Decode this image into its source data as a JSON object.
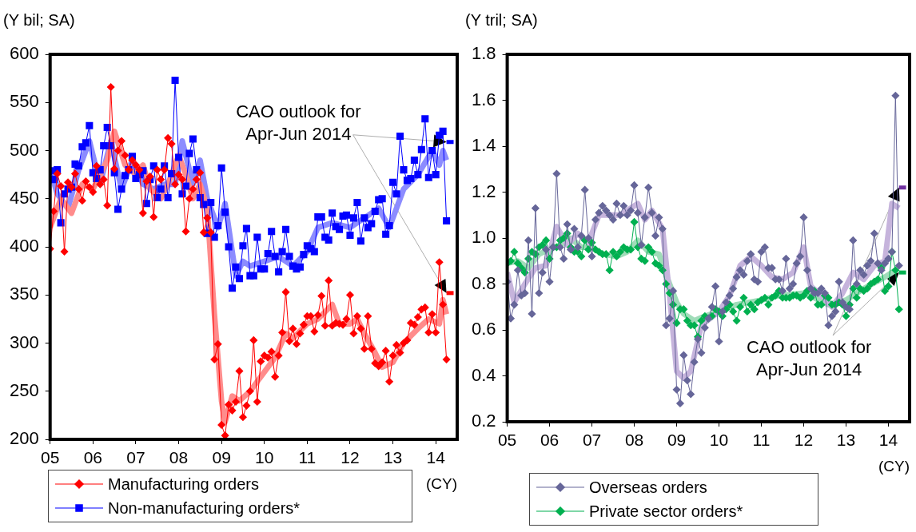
{
  "chart_data": [
    {
      "type": "line",
      "ylabel": "(Y bil; SA)",
      "xlabel": "(CY)",
      "annotations": [
        {
          "text": "CAO outlook for Apr-Jun 2014",
          "x": "2014-04",
          "y": 509
        }
      ],
      "legend": "bottom",
      "x": [
        "2005-01",
        "2005-02",
        "2005-03",
        "2005-04",
        "2005-05",
        "2005-06",
        "2005-07",
        "2005-08",
        "2005-09",
        "2005-10",
        "2005-11",
        "2005-12",
        "2006-01",
        "2006-02",
        "2006-03",
        "2006-04",
        "2006-05",
        "2006-06",
        "2006-07",
        "2006-08",
        "2006-09",
        "2006-10",
        "2006-11",
        "2006-12",
        "2007-01",
        "2007-02",
        "2007-03",
        "2007-04",
        "2007-05",
        "2007-06",
        "2007-07",
        "2007-08",
        "2007-09",
        "2007-10",
        "2007-11",
        "2007-12",
        "2008-01",
        "2008-02",
        "2008-03",
        "2008-04",
        "2008-05",
        "2008-06",
        "2008-07",
        "2008-08",
        "2008-09",
        "2008-10",
        "2008-11",
        "2008-12",
        "2009-01",
        "2009-02",
        "2009-03",
        "2009-04",
        "2009-05",
        "2009-06",
        "2009-07",
        "2009-08",
        "2009-09",
        "2009-10",
        "2009-11",
        "2009-12",
        "2010-01",
        "2010-02",
        "2010-03",
        "2010-04",
        "2010-05",
        "2010-06",
        "2010-07",
        "2010-08",
        "2010-09",
        "2010-10",
        "2010-11",
        "2010-12",
        "2011-01",
        "2011-02",
        "2011-03",
        "2011-04",
        "2011-05",
        "2011-06",
        "2011-07",
        "2011-08",
        "2011-09",
        "2011-10",
        "2011-11",
        "2011-12",
        "2012-01",
        "2012-02",
        "2012-03",
        "2012-04",
        "2012-05",
        "2012-06",
        "2012-07",
        "2012-08",
        "2012-09",
        "2012-10",
        "2012-11",
        "2012-12",
        "2013-01",
        "2013-02",
        "2013-03",
        "2013-04",
        "2013-05",
        "2013-06",
        "2013-07",
        "2013-08",
        "2013-09",
        "2013-10",
        "2013-11",
        "2013-12",
        "2014-01",
        "2014-02",
        "2014-03",
        "2014-04"
      ],
      "xlim": [
        "2005",
        "2014-07"
      ],
      "xticks": [
        {
          "value": "2005",
          "label": "05"
        },
        {
          "value": "2006",
          "label": "06"
        },
        {
          "value": "2007",
          "label": "07"
        },
        {
          "value": "2008",
          "label": "08"
        },
        {
          "value": "2009",
          "label": "09"
        },
        {
          "value": "2010",
          "label": "10"
        },
        {
          "value": "2011",
          "label": "11"
        },
        {
          "value": "2012",
          "label": "12"
        },
        {
          "value": "2013",
          "label": "13"
        },
        {
          "value": "2014",
          "label": "14"
        }
      ],
      "ylim": [
        200,
        600
      ],
      "yticks": [
        200,
        250,
        300,
        350,
        400,
        450,
        500,
        550,
        600
      ],
      "series": [
        {
          "color": "#ff8c8c",
          "marker": "none",
          "x": [
            "2005-01",
            "2005-04",
            "2005-07",
            "2005-10",
            "2006-01",
            "2006-03",
            "2006-05",
            "2006-07",
            "2006-10",
            "2007-01",
            "2007-03",
            "2007-05",
            "2007-08",
            "2007-10",
            "2008-01",
            "2008-03",
            "2008-05",
            "2008-07",
            "2008-09",
            "2008-11",
            "2009-01",
            "2009-02",
            "2009-04",
            "2009-06",
            "2009-09",
            "2010-01",
            "2010-04",
            "2010-07",
            "2010-09",
            "2011-01",
            "2011-04",
            "2011-08",
            "2011-10",
            "2012-01",
            "2012-03",
            "2012-05",
            "2012-08",
            "2012-10",
            "2013-01",
            "2013-04",
            "2013-08",
            "2013-11",
            "2014-02",
            "2014-03",
            "2014-04"
          ],
          "values": [
            420,
            450,
            435,
            465,
            460,
            475,
            490,
            520,
            485,
            475,
            485,
            460,
            450,
            465,
            495,
            475,
            450,
            465,
            440,
            330,
            240,
            218,
            245,
            240,
            250,
            270,
            285,
            310,
            305,
            320,
            325,
            340,
            320,
            320,
            325,
            310,
            290,
            275,
            280,
            300,
            315,
            325,
            320,
            345,
            330
          ]
        },
        {
          "color": "#8c8cff",
          "marker": "none",
          "x": [
            "2005-01",
            "2005-03",
            "2005-06",
            "2005-09",
            "2005-12",
            "2006-03",
            "2006-06",
            "2006-09",
            "2006-12",
            "2007-03",
            "2007-06",
            "2007-09",
            "2007-12",
            "2008-02",
            "2008-05",
            "2008-07",
            "2008-09",
            "2008-12",
            "2009-02",
            "2009-05",
            "2009-07",
            "2009-09",
            "2010-01",
            "2010-05",
            "2010-09",
            "2011-01",
            "2011-04",
            "2011-08",
            "2012-01",
            "2012-05",
            "2012-09",
            "2012-12",
            "2013-04",
            "2013-08",
            "2013-12",
            "2014-02",
            "2014-03",
            "2014-04"
          ],
          "values": [
            480,
            455,
            440,
            480,
            510,
            465,
            510,
            460,
            490,
            465,
            460,
            465,
            465,
            510,
            465,
            490,
            450,
            420,
            445,
            370,
            385,
            380,
            385,
            390,
            380,
            395,
            420,
            425,
            420,
            430,
            440,
            420,
            460,
            475,
            500,
            485,
            500,
            490
          ]
        },
        {
          "name": "Manufacturing orders",
          "color": "#ff0000",
          "marker": "diamond",
          "values": [
            398,
            437,
            476,
            463,
            395,
            467,
            462,
            476,
            460,
            448,
            468,
            462,
            457,
            484,
            465,
            470,
            443,
            566,
            481,
            500,
            510,
            495,
            480,
            490,
            485,
            480,
            435,
            468,
            473,
            431,
            480,
            470,
            480,
            513,
            507,
            465,
            475,
            470,
            416,
            450,
            460,
            470,
            477,
            415,
            430,
            415,
            283,
            299,
            215,
            204,
            236,
            230,
            239,
            271,
            223,
            235,
            250,
            303,
            239,
            281,
            287,
            285,
            291,
            265,
            287,
            311,
            353,
            302,
            315,
            299,
            310,
            319,
            328,
            328,
            312,
            329,
            349,
            318,
            365,
            318,
            321,
            320,
            319,
            325,
            350,
            310,
            328,
            315,
            294,
            328,
            294,
            279,
            276,
            280,
            292,
            260,
            287,
            298,
            290,
            300,
            303,
            321,
            319,
            327,
            335,
            337,
            311,
            330,
            311,
            384,
            340,
            283
          ]
        },
        {
          "name": "Non-manufacturing orders*",
          "color": "#0000ff",
          "marker": "square",
          "values": [
            479,
            470,
            480,
            425,
            455,
            460,
            462,
            486,
            484,
            504,
            508,
            526,
            477,
            471,
            480,
            505,
            524,
            505,
            477,
            439,
            460,
            474,
            480,
            494,
            471,
            475,
            479,
            445,
            470,
            484,
            451,
            460,
            484,
            451,
            476,
            573,
            493,
            455,
            463,
            497,
            512,
            480,
            451,
            444,
            414,
            446,
            410,
            422,
            482,
            436,
            400,
            357,
            379,
            367,
            401,
            419,
            370,
            370,
            410,
            377,
            377,
            393,
            416,
            390,
            374,
            395,
            418,
            390,
            380,
            377,
            379,
            392,
            401,
            398,
            395,
            431,
            431,
            410,
            407,
            435,
            421,
            418,
            432,
            433,
            412,
            430,
            446,
            406,
            430,
            420,
            424,
            437,
            449,
            450,
            413,
            422,
            467,
            455,
            515,
            480,
            469,
            471,
            490,
            475,
            501,
            533,
            472,
            500,
            475,
            516,
            520,
            427
          ]
        },
        {
          "color": "#ff0000",
          "marker": "none",
          "x": [
            "2014-04",
            "2014-06"
          ],
          "values": [
            352,
            352
          ]
        },
        {
          "color": "#0000ff",
          "marker": "none",
          "x": [
            "2014-04",
            "2014-06"
          ],
          "values": [
            509,
            509
          ]
        }
      ]
    },
    {
      "type": "line",
      "ylabel": "(Y tril; SA)",
      "xlabel": "(CY)",
      "annotations": [
        {
          "text": "CAO outlook for Apr-Jun 2014",
          "x": "2014-04",
          "y": 1.22
        }
      ],
      "legend": "bottom",
      "x": [
        "2005-01",
        "2005-02",
        "2005-03",
        "2005-04",
        "2005-05",
        "2005-06",
        "2005-07",
        "2005-08",
        "2005-09",
        "2005-10",
        "2005-11",
        "2005-12",
        "2006-01",
        "2006-02",
        "2006-03",
        "2006-04",
        "2006-05",
        "2006-06",
        "2006-07",
        "2006-08",
        "2006-09",
        "2006-10",
        "2006-11",
        "2006-12",
        "2007-01",
        "2007-02",
        "2007-03",
        "2007-04",
        "2007-05",
        "2007-06",
        "2007-07",
        "2007-08",
        "2007-09",
        "2007-10",
        "2007-11",
        "2007-12",
        "2008-01",
        "2008-02",
        "2008-03",
        "2008-04",
        "2008-05",
        "2008-06",
        "2008-07",
        "2008-08",
        "2008-09",
        "2008-10",
        "2008-11",
        "2008-12",
        "2009-01",
        "2009-02",
        "2009-03",
        "2009-04",
        "2009-05",
        "2009-06",
        "2009-07",
        "2009-08",
        "2009-09",
        "2009-10",
        "2009-11",
        "2009-12",
        "2010-01",
        "2010-02",
        "2010-03",
        "2010-04",
        "2010-05",
        "2010-06",
        "2010-07",
        "2010-08",
        "2010-09",
        "2010-10",
        "2010-11",
        "2010-12",
        "2011-01",
        "2011-02",
        "2011-03",
        "2011-04",
        "2011-05",
        "2011-06",
        "2011-07",
        "2011-08",
        "2011-09",
        "2011-10",
        "2011-11",
        "2011-12",
        "2012-01",
        "2012-02",
        "2012-03",
        "2012-04",
        "2012-05",
        "2012-06",
        "2012-07",
        "2012-08",
        "2012-09",
        "2012-10",
        "2012-11",
        "2012-12",
        "2013-01",
        "2013-02",
        "2013-03",
        "2013-04",
        "2013-05",
        "2013-06",
        "2013-07",
        "2013-08",
        "2013-09",
        "2013-10",
        "2013-11",
        "2013-12",
        "2014-01",
        "2014-02",
        "2014-03",
        "2014-04"
      ],
      "xlim": [
        "2005",
        "2014-07"
      ],
      "xticks": [
        {
          "value": "2005",
          "label": "05"
        },
        {
          "value": "2006",
          "label": "06"
        },
        {
          "value": "2007",
          "label": "07"
        },
        {
          "value": "2008",
          "label": "08"
        },
        {
          "value": "2009",
          "label": "09"
        },
        {
          "value": "2010",
          "label": "10"
        },
        {
          "value": "2011",
          "label": "11"
        },
        {
          "value": "2012",
          "label": "12"
        },
        {
          "value": "2013",
          "label": "13"
        },
        {
          "value": "2014",
          "label": "14"
        }
      ],
      "ylim": [
        0.2,
        1.8
      ],
      "yticks": [
        0.2,
        0.4,
        0.6,
        0.8,
        {
          "value": 1,
          "label": "1.0"
        },
        1.2,
        1.4,
        1.6,
        1.8
      ],
      "series": [
        {
          "color": "#c6b4dc",
          "marker": "none",
          "x": [
            "2005-01",
            "2005-03",
            "2005-06",
            "2005-09",
            "2005-12",
            "2006-03",
            "2006-06",
            "2006-09",
            "2006-12",
            "2007-03",
            "2007-06",
            "2007-09",
            "2007-12",
            "2008-02",
            "2008-04",
            "2008-06",
            "2008-09",
            "2008-11",
            "2009-01",
            "2009-03",
            "2009-05",
            "2009-08",
            "2010-01",
            "2010-04",
            "2010-07",
            "2010-10",
            "2011-01",
            "2011-04",
            "2011-07",
            "2011-10",
            "2012-01",
            "2012-03",
            "2012-06",
            "2012-09",
            "2012-12",
            "2013-03",
            "2013-06",
            "2013-09",
            "2013-12",
            "2014-02",
            "2014-04"
          ],
          "values": [
            0.85,
            0.72,
            0.8,
            0.87,
            0.88,
            1.05,
            0.97,
            1.02,
            0.98,
            1.1,
            1.1,
            1.1,
            1.13,
            1.15,
            1.08,
            1.12,
            1.04,
            0.75,
            0.42,
            0.39,
            0.42,
            0.62,
            0.68,
            0.75,
            0.88,
            0.92,
            0.88,
            0.83,
            0.82,
            0.85,
            0.96,
            0.79,
            0.75,
            0.7,
            0.76,
            0.85,
            0.82,
            0.88,
            0.9,
            1.15,
            1.13
          ]
        },
        {
          "color": "#a0dcb9",
          "marker": "none",
          "x": [
            "2005-01",
            "2005-04",
            "2005-07",
            "2005-10",
            "2006-01",
            "2006-04",
            "2006-07",
            "2006-10",
            "2007-01",
            "2007-04",
            "2007-08",
            "2007-11",
            "2008-02",
            "2008-05",
            "2008-08",
            "2008-10",
            "2009-01",
            "2009-03",
            "2009-06",
            "2009-09",
            "2010-01",
            "2010-06",
            "2011-01",
            "2011-06",
            "2012-01",
            "2012-04",
            "2012-08",
            "2013-01",
            "2013-06",
            "2013-12",
            "2014-03"
          ],
          "values": [
            0.89,
            0.9,
            0.87,
            0.93,
            0.95,
            0.97,
            1.0,
            0.96,
            0.96,
            0.93,
            0.92,
            0.94,
            0.99,
            0.94,
            0.93,
            0.84,
            0.72,
            0.67,
            0.64,
            0.66,
            0.68,
            0.71,
            0.73,
            0.75,
            0.76,
            0.74,
            0.71,
            0.73,
            0.78,
            0.83,
            0.86
          ]
        },
        {
          "name": "Overseas orders",
          "color": "#666699",
          "marker": "diamond",
          "values": [
            0.81,
            0.65,
            0.71,
            0.86,
            0.75,
            0.76,
            0.99,
            0.67,
            1.13,
            0.76,
            0.85,
            0.95,
            0.81,
            0.96,
            1.28,
            0.96,
            0.91,
            1.06,
            0.95,
            1.04,
            0.96,
            1.01,
            1.21,
            1.0,
            0.92,
            1.08,
            1.11,
            1.14,
            1.12,
            1.1,
            1.08,
            1.15,
            1.1,
            1.14,
            1.1,
            1.12,
            1.23,
            1.11,
            0.97,
            1.09,
            1.22,
            1.11,
            1.01,
            1.09,
            1.04,
            0.62,
            0.65,
            0.77,
            0.34,
            0.28,
            0.49,
            0.38,
            0.32,
            0.46,
            0.56,
            0.5,
            0.61,
            0.65,
            0.7,
            0.79,
            0.55,
            0.68,
            0.72,
            0.75,
            0.78,
            0.83,
            0.86,
            0.84,
            0.9,
            0.93,
            0.82,
            0.81,
            0.94,
            0.96,
            0.87,
            0.87,
            0.82,
            0.82,
            0.77,
            0.91,
            0.78,
            0.8,
            0.89,
            0.92,
            1.09,
            0.86,
            0.78,
            0.76,
            0.76,
            0.78,
            0.76,
            0.62,
            0.66,
            0.68,
            0.81,
            0.72,
            0.7,
            0.69,
            0.99,
            0.8,
            0.86,
            0.84,
            0.88,
            0.9,
            1.02,
            0.89,
            0.86,
            0.89,
            0.91,
            0.94,
            1.62,
            0.88
          ]
        },
        {
          "name": "Private sector orders*",
          "color": "#00b050",
          "marker": "diamond",
          "values": [
            0.89,
            0.9,
            0.94,
            0.89,
            0.87,
            0.85,
            0.91,
            0.94,
            0.93,
            0.96,
            0.97,
            0.99,
            0.91,
            0.96,
            0.96,
            0.99,
            1.0,
            1.02,
            0.96,
            0.94,
            0.94,
            0.92,
            0.99,
            0.95,
            0.98,
            0.95,
            0.94,
            0.93,
            0.93,
            0.86,
            0.94,
            0.92,
            0.94,
            0.96,
            0.95,
            0.95,
            1.07,
            0.96,
            0.91,
            0.9,
            0.96,
            0.94,
            0.89,
            0.88,
            0.86,
            0.8,
            0.76,
            0.71,
            0.63,
            0.69,
            0.69,
            0.64,
            0.62,
            0.62,
            0.57,
            0.64,
            0.66,
            0.65,
            0.66,
            0.69,
            0.68,
            0.66,
            0.69,
            0.71,
            0.68,
            0.64,
            0.7,
            0.74,
            0.68,
            0.71,
            0.69,
            0.72,
            0.73,
            0.74,
            0.71,
            0.74,
            0.75,
            0.77,
            0.74,
            0.74,
            0.74,
            0.75,
            0.75,
            0.74,
            0.75,
            0.77,
            0.74,
            0.77,
            0.71,
            0.71,
            0.75,
            0.74,
            0.71,
            0.71,
            0.72,
            0.71,
            0.66,
            0.71,
            0.78,
            0.74,
            0.78,
            0.77,
            0.78,
            0.8,
            0.81,
            0.82,
            0.87,
            0.77,
            0.79,
            0.94,
            0.86,
            0.69
          ]
        },
        {
          "color": "#7030a0",
          "marker": "none",
          "x": [
            "2014-04",
            "2014-06"
          ],
          "values": [
            1.22,
            1.22
          ]
        },
        {
          "color": "#00b050",
          "marker": "none",
          "x": [
            "2014-04",
            "2014-06"
          ],
          "values": [
            0.85,
            0.85
          ]
        }
      ]
    }
  ]
}
